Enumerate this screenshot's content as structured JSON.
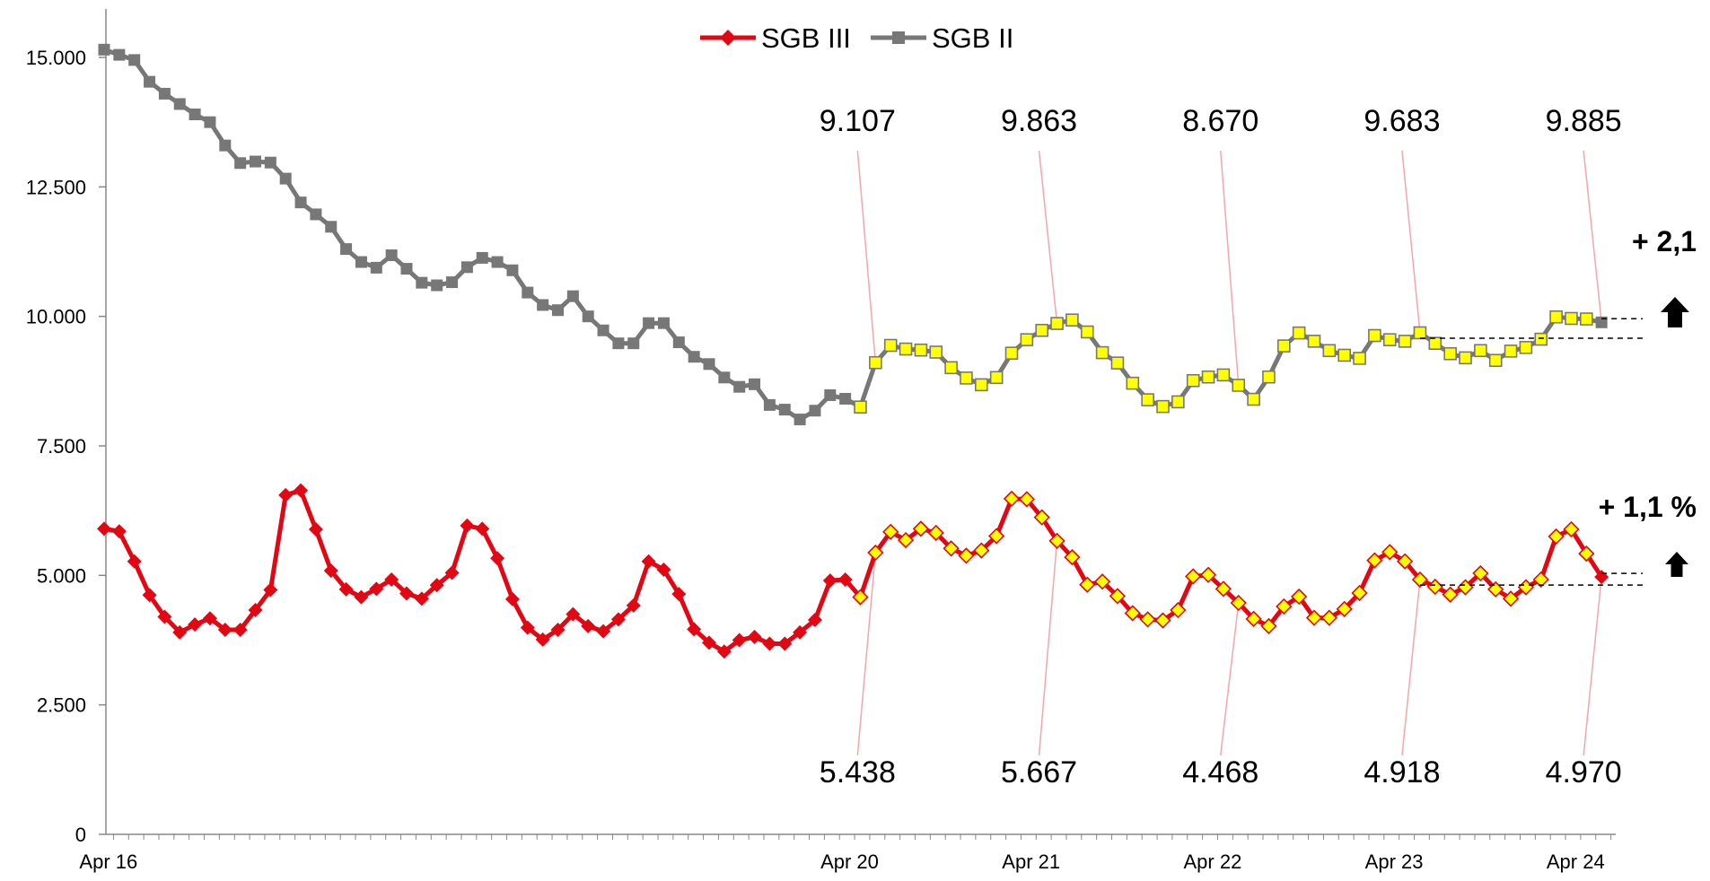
{
  "chart_data": {
    "type": "line",
    "title": "",
    "xlabel": "",
    "ylabel": "",
    "ylim": [
      0,
      16000
    ],
    "yticks": [
      0,
      2500,
      5000,
      7500,
      10000,
      12500,
      15000
    ],
    "ytick_labels": [
      "0",
      "2.500",
      "5.000",
      "7.500",
      "10.000",
      "12.500",
      "15.000"
    ],
    "xtick_labels": [
      {
        "label": "Apr 16",
        "index": 1
      },
      {
        "label": "Apr 20",
        "index": 50
      },
      {
        "label": "Apr 21",
        "index": 62
      },
      {
        "label": "Apr 22",
        "index": 74
      },
      {
        "label": "Apr 23",
        "index": 86
      },
      {
        "label": "Apr 24",
        "index": 98
      }
    ],
    "legend": {
      "position": "top-center"
    },
    "series": [
      {
        "name": "SGB III",
        "color": "#e30613",
        "marker": "diamond",
        "highlight_range": [
          50,
          98
        ],
        "highlight_color": "#ffff00",
        "values": [
          5900,
          5850,
          5270,
          4620,
          4200,
          3900,
          4050,
          4170,
          3950,
          3950,
          4330,
          4720,
          6550,
          6640,
          5890,
          5090,
          4730,
          4580,
          4740,
          4920,
          4650,
          4550,
          4810,
          5050,
          5960,
          5900,
          5330,
          4540,
          3990,
          3760,
          3950,
          4250,
          4020,
          3920,
          4150,
          4420,
          5270,
          5110,
          4640,
          3960,
          3700,
          3530,
          3750,
          3810,
          3680,
          3680,
          3900,
          4140,
          4900,
          4920,
          4580,
          5438,
          5840,
          5680,
          5900,
          5820,
          5520,
          5380,
          5480,
          5760,
          6480,
          6470,
          6120,
          5667,
          5350,
          4820,
          4880,
          4600,
          4270,
          4150,
          4130,
          4330,
          4980,
          5010,
          4740,
          4468,
          4160,
          4020,
          4400,
          4590,
          4180,
          4180,
          4350,
          4660,
          5290,
          5450,
          5270,
          4918,
          4780,
          4630,
          4770,
          5040,
          4730,
          4550,
          4770,
          4920,
          5750,
          5890,
          5420,
          4970
        ]
      },
      {
        "name": "SGB II",
        "color": "#777777",
        "marker": "square",
        "highlight_range": [
          50,
          98
        ],
        "highlight_color": "#ffff00",
        "values": [
          15150,
          15050,
          14950,
          14530,
          14300,
          14100,
          13900,
          13750,
          13300,
          12960,
          12990,
          12970,
          12660,
          12200,
          11970,
          11730,
          11300,
          11050,
          10940,
          11180,
          10920,
          10650,
          10600,
          10660,
          10950,
          11130,
          11050,
          10890,
          10460,
          10220,
          10120,
          10390,
          10000,
          9730,
          9480,
          9480,
          9870,
          9870,
          9500,
          9220,
          9080,
          8820,
          8640,
          8690,
          8290,
          8200,
          8010,
          8180,
          8480,
          8410,
          8250,
          9107,
          9440,
          9370,
          9350,
          9310,
          9010,
          8810,
          8680,
          8820,
          9290,
          9550,
          9730,
          9863,
          9930,
          9700,
          9300,
          9100,
          8710,
          8390,
          8260,
          8350,
          8760,
          8830,
          8870,
          8670,
          8400,
          8830,
          9430,
          9680,
          9520,
          9340,
          9250,
          9190,
          9630,
          9550,
          9520,
          9683,
          9480,
          9280,
          9200,
          9340,
          9150,
          9330,
          9400,
          9560,
          9990,
          9960,
          9950,
          9885
        ]
      }
    ],
    "callouts": [
      {
        "series": "SGB II",
        "index": 51,
        "label": "9.107"
      },
      {
        "series": "SGB II",
        "index": 63,
        "label": "9.863"
      },
      {
        "series": "SGB II",
        "index": 75,
        "label": "8.670"
      },
      {
        "series": "SGB II",
        "index": 87,
        "label": "9.683"
      },
      {
        "series": "SGB II",
        "index": 99,
        "label": "9.885"
      },
      {
        "series": "SGB III",
        "index": 51,
        "label": "5.438"
      },
      {
        "series": "SGB III",
        "index": 63,
        "label": "5.667"
      },
      {
        "series": "SGB III",
        "index": 75,
        "label": "4.468"
      },
      {
        "series": "SGB III",
        "index": 87,
        "label": "4.918"
      },
      {
        "series": "SGB III",
        "index": 99,
        "label": "4.970"
      }
    ],
    "annotations": [
      {
        "series": "SGB II",
        "text": "+ 2,1",
        "direction": "up"
      },
      {
        "series": "SGB III",
        "text": "+ 1,1 %",
        "direction": "up"
      }
    ]
  }
}
